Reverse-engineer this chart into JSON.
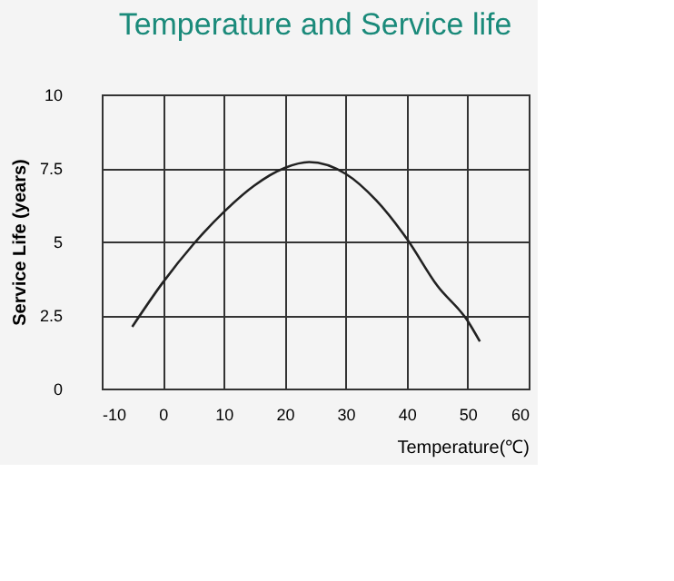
{
  "chart_data": {
    "type": "line",
    "title": "Temperature and Service life",
    "xlabel": "Temperature(℃)",
    "ylabel": "Service Life (years)",
    "x": [
      -5,
      0,
      5,
      10,
      15,
      20,
      24,
      30,
      35,
      40,
      45,
      50,
      52
    ],
    "series": [
      {
        "color": "#222222",
        "values": [
          2.1,
          3.6,
          4.9,
          6.0,
          6.9,
          7.5,
          7.7,
          7.3,
          6.4,
          5.1,
          3.5,
          2.3,
          1.6
        ]
      }
    ],
    "xlim": [
      -10,
      60
    ],
    "xticks": [
      -10,
      0,
      10,
      20,
      30,
      40,
      50,
      60
    ],
    "ylim": [
      0,
      10
    ],
    "yticks": [
      0,
      2.5,
      5,
      7.5,
      10
    ],
    "grid": true,
    "marker": "none",
    "line_style": "solid"
  }
}
